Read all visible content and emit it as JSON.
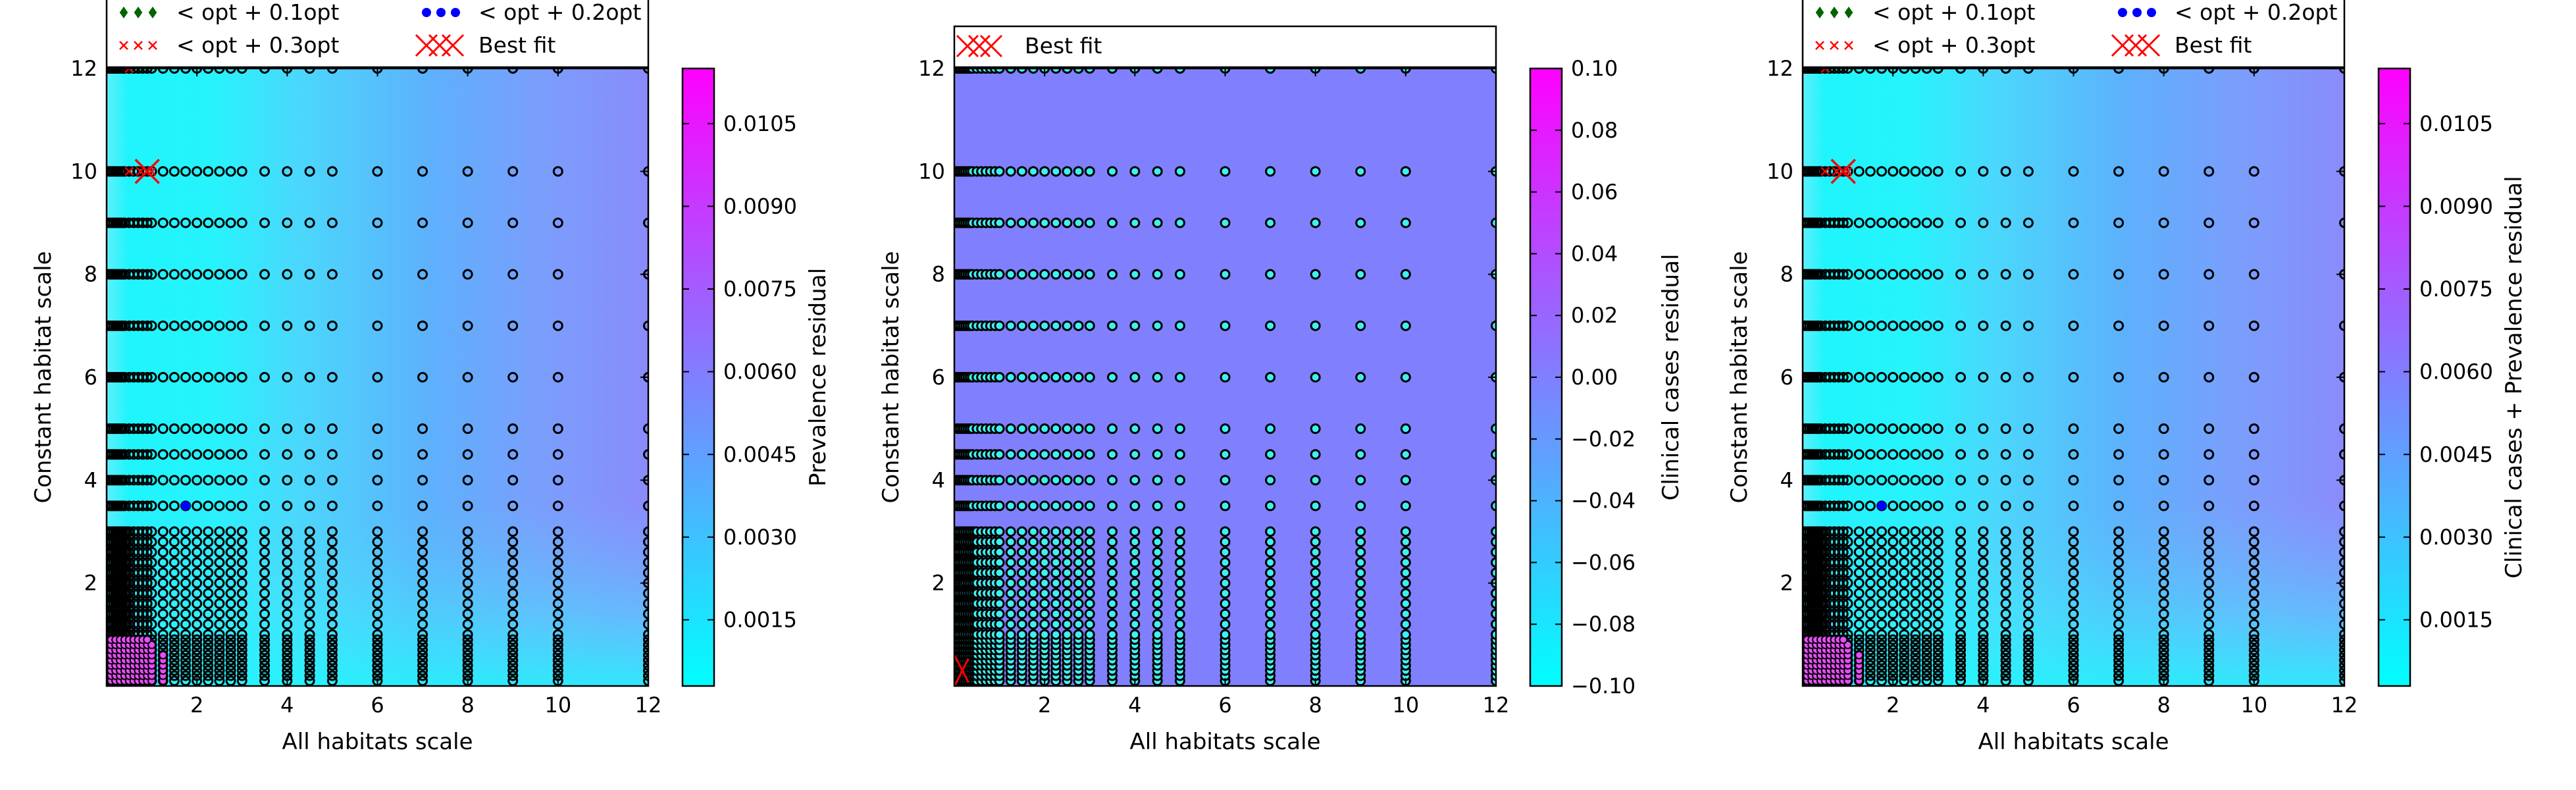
{
  "colors": {
    "cmap_low": "#00ffff",
    "cmap_high": "#ff00ff",
    "marker_edge": "#000000",
    "opt01": "#006400",
    "opt02": "#0000ff",
    "opt03": "#ff0000",
    "best_fit": "#ff0000"
  },
  "legend_labels": {
    "opt01": "< opt + 0.1opt",
    "opt02": "< opt + 0.2opt",
    "opt03": "< opt + 0.3opt",
    "best": "Best fit"
  },
  "chart_data": [
    {
      "type": "heatmap",
      "xlabel": "All habitats scale",
      "ylabel": "Constant habitat scale",
      "colorbar_label": "Prevalence residual",
      "xticks": [
        2,
        4,
        6,
        8,
        10,
        12
      ],
      "yticks": [
        2,
        4,
        6,
        8,
        10,
        12
      ],
      "cbar_ticks": [
        "0.0015",
        "0.0030",
        "0.0045",
        "0.0060",
        "0.0075",
        "0.0090",
        "0.0105"
      ],
      "cbar_range": [
        0.0003,
        0.0115
      ],
      "legend": [
        "opt01",
        "opt02",
        "opt03",
        "best"
      ],
      "best_fit": [
        0.9,
        10
      ],
      "opt01_points": [],
      "opt02_points": [
        [
          1.75,
          3.5
        ]
      ],
      "opt03_points": [
        [
          0.5,
          12
        ],
        [
          0.5,
          10
        ],
        [
          0.75,
          10
        ],
        [
          1.0,
          10
        ]
      ]
    },
    {
      "type": "heatmap",
      "xlabel": "All habitats scale",
      "ylabel": "Constant habitat scale",
      "colorbar_label": "Clinical cases residual",
      "xticks": [
        2,
        4,
        6,
        8,
        10,
        12
      ],
      "yticks": [
        2,
        4,
        6,
        8,
        10,
        12
      ],
      "cbar_ticks": [
        "−0.10",
        "−0.08",
        "−0.06",
        "−0.04",
        "−0.02",
        "0.00",
        "0.02",
        "0.04",
        "0.06",
        "0.08",
        "0.10"
      ],
      "cbar_range": [
        -0.1,
        0.1
      ],
      "legend": [
        "best"
      ],
      "best_fit": [
        0.05,
        0.3
      ],
      "opt01_points": [],
      "opt02_points": [],
      "opt03_points": []
    },
    {
      "type": "heatmap",
      "xlabel": "All habitats scale",
      "ylabel": "Constant habitat scale",
      "colorbar_label": "Clinical cases + Prevalence residual",
      "xticks": [
        2,
        4,
        6,
        8,
        10,
        12
      ],
      "yticks": [
        2,
        4,
        6,
        8,
        10,
        12
      ],
      "cbar_ticks": [
        "0.0015",
        "0.0030",
        "0.0045",
        "0.0060",
        "0.0075",
        "0.0090",
        "0.0105"
      ],
      "cbar_range": [
        0.0003,
        0.0115
      ],
      "legend": [
        "opt01",
        "opt02",
        "opt03",
        "best"
      ],
      "best_fit": [
        0.9,
        10
      ],
      "opt01_points": [],
      "opt02_points": [
        [
          1.75,
          3.5
        ]
      ],
      "opt03_points": [
        [
          0.5,
          12
        ],
        [
          0.5,
          10
        ],
        [
          0.75,
          10
        ],
        [
          1.0,
          10
        ]
      ]
    }
  ]
}
